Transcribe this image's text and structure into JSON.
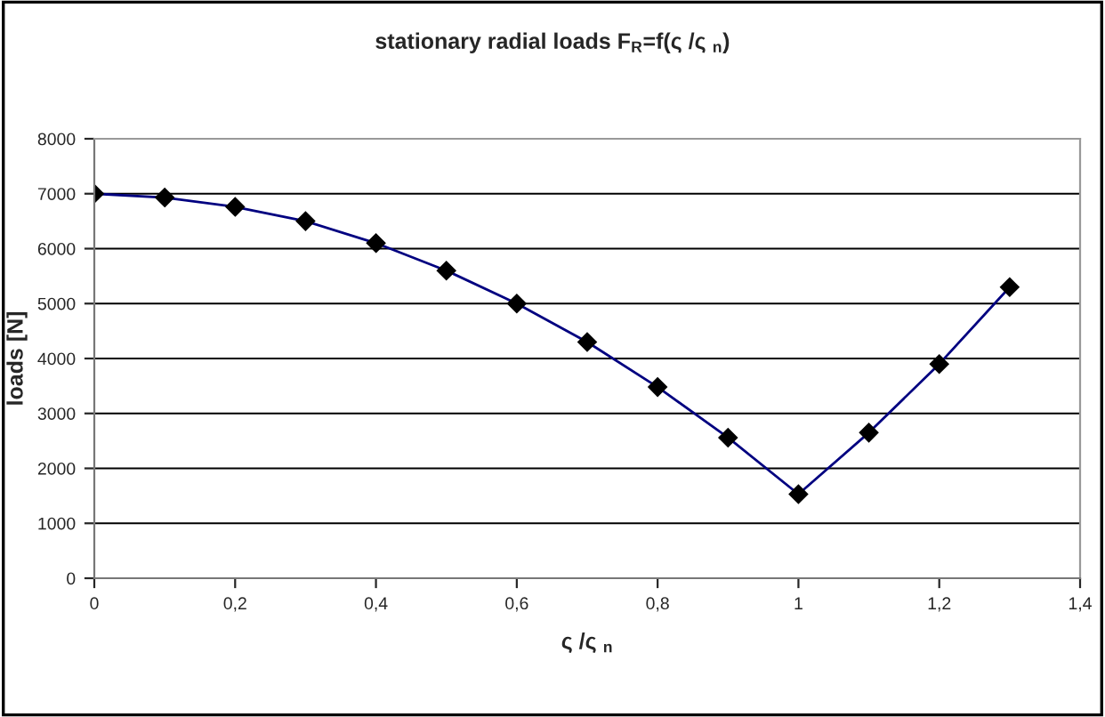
{
  "chart_data": {
    "type": "line",
    "title": "stationary radial loads F$_{R}$=f(ς /ς $_{n}$)",
    "xlabel": "ς /ς $_{n}$",
    "ylabel": "loads [N]",
    "x": [
      0,
      0.1,
      0.2,
      0.3,
      0.4,
      0.5,
      0.6,
      0.7,
      0.8,
      0.9,
      1.0,
      1.1,
      1.2,
      1.3
    ],
    "series": [
      {
        "color": "#000080",
        "values": [
          7000,
          6930,
          6760,
          6500,
          6100,
          5600,
          5000,
          4300,
          3480,
          2560,
          1530,
          2650,
          3900,
          5300
        ]
      }
    ],
    "xlim": [
      0,
      1.4
    ],
    "xticks": [
      0,
      {
        "value": 0.2,
        "label": "0,2"
      },
      {
        "value": 0.4,
        "label": "0,4"
      },
      {
        "value": 0.6,
        "label": "0,6"
      },
      {
        "value": 0.8,
        "label": "0,8"
      },
      1,
      {
        "value": 1.2,
        "label": "1,2"
      },
      {
        "value": 1.4,
        "label": "1,4"
      }
    ],
    "ylim": [
      0,
      8000
    ],
    "yticks": [
      0,
      1000,
      2000,
      3000,
      4000,
      5000,
      6000,
      7000,
      8000
    ],
    "grid": "y",
    "marker": "diamond",
    "line_style": "solid"
  }
}
